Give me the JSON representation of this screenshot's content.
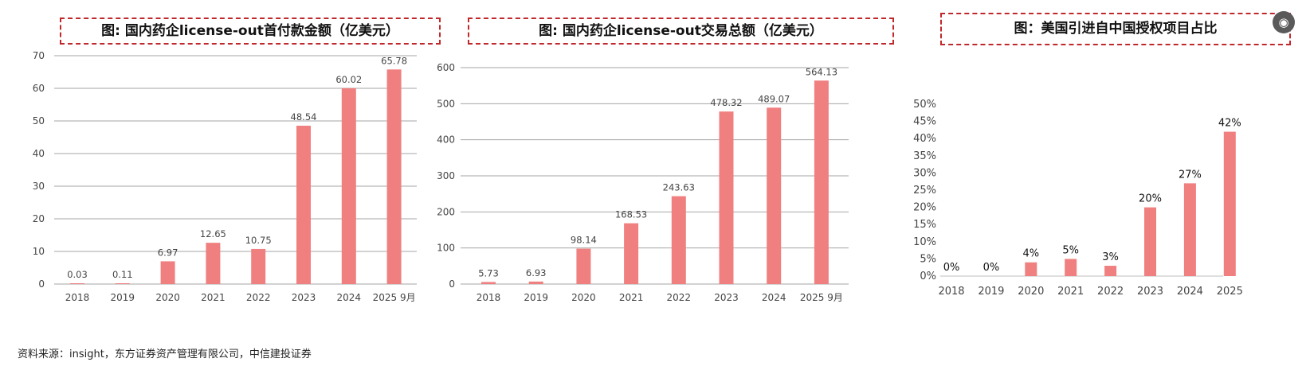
{
  "titles": {
    "chart1": "图: 国内药企license-out首付款金额（亿美元）",
    "chart2": "图: 国内药企license-out交易总额（亿美元）",
    "chart3": "图：美国引进自中国授权项目占比"
  },
  "source": "资料来源：insight，东方证券资产管理有限公司，中信建投证券",
  "colors": {
    "bar": "#f08080",
    "grid": "#a6a6a6",
    "title_border": "#c0282c"
  },
  "icons": {
    "corner": "camera-icon"
  },
  "chart_data": [
    {
      "type": "bar",
      "title": "图: 国内药企license-out首付款金额（亿美元）",
      "categories": [
        "2018",
        "2019",
        "2020",
        "2021",
        "2022",
        "2023",
        "2024",
        "2025 9月"
      ],
      "values": [
        0.03,
        0.11,
        6.97,
        12.65,
        10.75,
        48.54,
        60.02,
        65.78
      ],
      "value_labels": [
        "0.03",
        "0.11",
        "6.97",
        "12.65",
        "10.75",
        "48.54",
        "60.02",
        "65.78"
      ],
      "ylim": [
        0,
        70
      ],
      "yticks": [
        "0",
        "10",
        "20",
        "30",
        "40",
        "50",
        "60",
        "70"
      ],
      "grid": true
    },
    {
      "type": "bar",
      "title": "图: 国内药企license-out交易总额（亿美元）",
      "categories": [
        "2018",
        "2019",
        "2020",
        "2021",
        "2022",
        "2023",
        "2024",
        "2025 9月"
      ],
      "values": [
        5.73,
        6.93,
        98.14,
        168.53,
        243.63,
        478.32,
        489.07,
        564.13
      ],
      "value_labels": [
        "5.73",
        "6.93",
        "98.14",
        "168.53",
        "243.63",
        "478.32",
        "489.07",
        "564.13"
      ],
      "ylim": [
        0,
        600
      ],
      "yticks": [
        "0",
        "100",
        "200",
        "300",
        "400",
        "500",
        "600"
      ],
      "grid": true
    },
    {
      "type": "bar",
      "title": "图：美国引进自中国授权项目占比",
      "categories": [
        "2018",
        "2019",
        "2020",
        "2021",
        "2022",
        "2023",
        "2024",
        "2025"
      ],
      "values": [
        0,
        0,
        4,
        5,
        3,
        20,
        27,
        42
      ],
      "value_labels": [
        "0%",
        "0%",
        "4%",
        "5%",
        "3%",
        "20%",
        "27%",
        "42%"
      ],
      "ylim": [
        0,
        50
      ],
      "yticks": [
        "0%",
        "5%",
        "10%",
        "15%",
        "20%",
        "25%",
        "30%",
        "35%",
        "40%",
        "45%",
        "50%"
      ],
      "grid": false
    }
  ]
}
